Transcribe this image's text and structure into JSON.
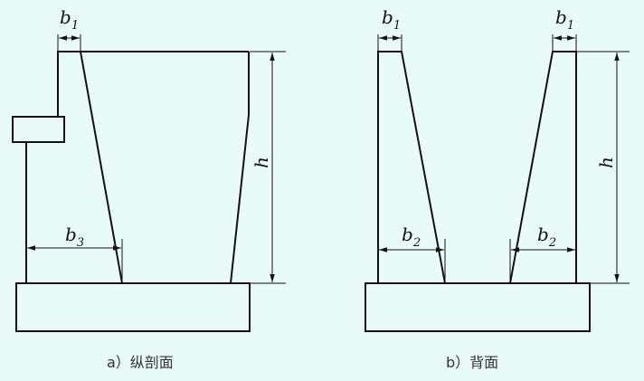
{
  "diagram": {
    "left": {
      "caption": "a）纵剖面",
      "labels": {
        "b1": {
          "main": "b",
          "sub": "1"
        },
        "b3": {
          "main": "b",
          "sub": "3"
        },
        "h": "h"
      }
    },
    "right": {
      "caption": "b）背面",
      "labels": {
        "b1_left": {
          "main": "b",
          "sub": "1"
        },
        "b1_right": {
          "main": "b",
          "sub": "1"
        },
        "b2_left": {
          "main": "b",
          "sub": "2"
        },
        "b2_right": {
          "main": "b",
          "sub": "2"
        },
        "h": "h"
      }
    }
  }
}
